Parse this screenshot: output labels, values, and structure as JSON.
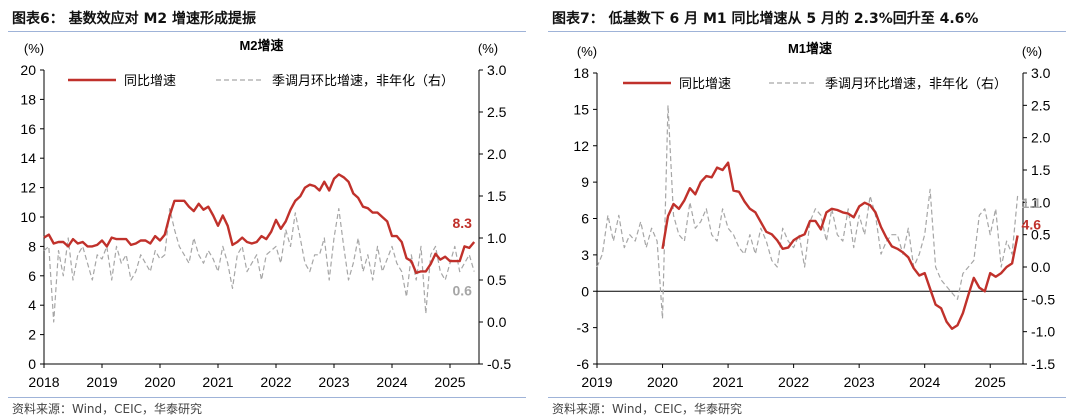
{
  "panels": [
    {
      "title": "图表6： 基数效应对 M2 增速形成提振",
      "source": "资料来源：Wind，CEIC，华泰研究"
    },
    {
      "title": "图表7： 低基数下 6 月 M1 同比增速从 5 月的 2.3%回升至 4.6%",
      "source": "资料来源：Wind，CEIC，华泰研究"
    }
  ],
  "colors": {
    "primary": "#c0312b",
    "secondary": "#a6a6a6",
    "header_rule": "#9fb3d8"
  },
  "chart_data": [
    {
      "type": "line",
      "title": "M2增速",
      "left_unit": "(%)",
      "right_unit": "(%)",
      "x_ticks": [
        "2018",
        "2019",
        "2020",
        "2021",
        "2022",
        "2023",
        "2024",
        "2025"
      ],
      "x_range": [
        2018.0,
        2025.5
      ],
      "ylim_left": [
        0,
        20
      ],
      "yticks_left": [
        "0",
        "2",
        "4",
        "6",
        "8",
        "10",
        "12",
        "14",
        "16",
        "18",
        "20"
      ],
      "ylim_right": [
        -0.5,
        3.0
      ],
      "yticks_right": [
        "-0.5",
        "0.0",
        "0.5",
        "1.0",
        "1.5",
        "2.0",
        "2.5",
        "3.0"
      ],
      "series": [
        {
          "name": "同比增速",
          "axis": "left",
          "style": "solid",
          "end_label": "8.3",
          "x": [
            2018.0,
            2018.083,
            2018.167,
            2018.25,
            2018.333,
            2018.417,
            2018.5,
            2018.583,
            2018.667,
            2018.75,
            2018.833,
            2018.917,
            2019.0,
            2019.083,
            2019.167,
            2019.25,
            2019.333,
            2019.417,
            2019.5,
            2019.583,
            2019.667,
            2019.75,
            2019.833,
            2019.917,
            2020.0,
            2020.083,
            2020.167,
            2020.25,
            2020.333,
            2020.417,
            2020.5,
            2020.583,
            2020.667,
            2020.75,
            2020.833,
            2020.917,
            2021.0,
            2021.083,
            2021.167,
            2021.25,
            2021.333,
            2021.417,
            2021.5,
            2021.583,
            2021.667,
            2021.75,
            2021.833,
            2021.917,
            2022.0,
            2022.083,
            2022.167,
            2022.25,
            2022.333,
            2022.417,
            2022.5,
            2022.583,
            2022.667,
            2022.75,
            2022.833,
            2022.917,
            2023.0,
            2023.083,
            2023.167,
            2023.25,
            2023.333,
            2023.417,
            2023.5,
            2023.583,
            2023.667,
            2023.75,
            2023.833,
            2023.917,
            2024.0,
            2024.083,
            2024.167,
            2024.25,
            2024.333,
            2024.417,
            2024.5,
            2024.583,
            2024.667,
            2024.75,
            2024.833,
            2024.917,
            2025.0,
            2025.083,
            2025.167,
            2025.25,
            2025.333,
            2025.417
          ],
          "values": [
            8.6,
            8.8,
            8.2,
            8.3,
            8.3,
            8.0,
            8.5,
            8.2,
            8.3,
            8.0,
            8.0,
            8.1,
            8.4,
            8.0,
            8.6,
            8.5,
            8.5,
            8.5,
            8.1,
            8.2,
            8.4,
            8.4,
            8.2,
            8.7,
            8.4,
            8.8,
            10.1,
            11.1,
            11.1,
            11.1,
            10.7,
            10.4,
            10.9,
            10.5,
            10.7,
            10.1,
            9.4,
            10.1,
            9.4,
            8.1,
            8.3,
            8.6,
            8.3,
            8.2,
            8.3,
            8.7,
            8.5,
            9.0,
            9.8,
            9.2,
            9.7,
            10.5,
            11.1,
            11.4,
            12.0,
            12.2,
            12.1,
            11.8,
            12.4,
            11.8,
            12.6,
            12.9,
            12.7,
            12.4,
            11.6,
            11.3,
            10.7,
            10.6,
            10.3,
            10.3,
            10.0,
            9.7,
            8.7,
            8.7,
            8.3,
            7.2,
            7.0,
            6.2,
            6.3,
            6.3,
            6.8,
            7.5,
            7.1,
            7.3,
            7.0,
            7.0,
            7.0,
            8.0,
            7.9,
            8.3
          ]
        },
        {
          "name": "季调月环比增速，非年化（右）",
          "axis": "right",
          "style": "dashed",
          "end_label": "0.6",
          "x": [
            2018.0,
            2018.083,
            2018.167,
            2018.25,
            2018.333,
            2018.417,
            2018.5,
            2018.583,
            2018.667,
            2018.75,
            2018.833,
            2018.917,
            2019.0,
            2019.083,
            2019.167,
            2019.25,
            2019.333,
            2019.417,
            2019.5,
            2019.583,
            2019.667,
            2019.75,
            2019.833,
            2019.917,
            2020.0,
            2020.083,
            2020.167,
            2020.25,
            2020.333,
            2020.417,
            2020.5,
            2020.583,
            2020.667,
            2020.75,
            2020.833,
            2020.917,
            2021.0,
            2021.083,
            2021.167,
            2021.25,
            2021.333,
            2021.417,
            2021.5,
            2021.583,
            2021.667,
            2021.75,
            2021.833,
            2021.917,
            2022.0,
            2022.083,
            2022.167,
            2022.25,
            2022.333,
            2022.417,
            2022.5,
            2022.583,
            2022.667,
            2022.75,
            2022.833,
            2022.917,
            2023.0,
            2023.083,
            2023.167,
            2023.25,
            2023.333,
            2023.417,
            2023.5,
            2023.583,
            2023.667,
            2023.75,
            2023.833,
            2023.917,
            2024.0,
            2024.083,
            2024.167,
            2024.25,
            2024.333,
            2024.417,
            2024.5,
            2024.583,
            2024.667,
            2024.75,
            2024.833,
            2024.917,
            2025.0,
            2025.083,
            2025.167,
            2025.25,
            2025.333,
            2025.417
          ],
          "values": [
            0.85,
            0.9,
            0.0,
            0.85,
            0.55,
            1.0,
            0.5,
            0.8,
            0.9,
            0.7,
            0.5,
            0.8,
            0.75,
            0.9,
            0.5,
            0.9,
            0.7,
            0.8,
            0.5,
            0.6,
            0.8,
            0.7,
            0.6,
            0.85,
            0.75,
            0.8,
            1.35,
            1.1,
            0.9,
            0.8,
            0.7,
            1.0,
            0.8,
            0.7,
            0.85,
            0.75,
            0.6,
            0.9,
            0.7,
            0.4,
            0.8,
            0.9,
            0.6,
            0.7,
            0.8,
            0.5,
            0.8,
            0.85,
            0.9,
            0.7,
            1.1,
            0.9,
            1.3,
            1.0,
            0.7,
            0.6,
            0.8,
            0.8,
            1.0,
            0.5,
            1.0,
            1.35,
            0.9,
            0.5,
            0.7,
            1.0,
            0.6,
            0.8,
            0.5,
            0.9,
            0.6,
            0.75,
            0.9,
            0.7,
            0.6,
            0.3,
            0.8,
            0.5,
            0.9,
            0.1,
            0.8,
            0.9,
            0.6,
            0.5,
            0.7,
            0.9,
            0.6,
            0.7,
            0.8,
            0.6
          ]
        }
      ]
    },
    {
      "type": "line",
      "title": "M1增速",
      "left_unit": "(%)",
      "right_unit": "(%)",
      "x_ticks": [
        "2019",
        "2020",
        "2021",
        "2022",
        "2023",
        "2024",
        "2025"
      ],
      "x_range": [
        2019.0,
        2025.5
      ],
      "ylim_left": [
        -6,
        18
      ],
      "yticks_left": [
        "-6",
        "-3",
        "0",
        "3",
        "6",
        "9",
        "12",
        "15",
        "18"
      ],
      "ylim_right": [
        -1.5,
        3.0
      ],
      "yticks_right": [
        "-1.5",
        "-1.0",
        "-0.5",
        "0.0",
        "0.5",
        "1.0",
        "1.5",
        "2.0",
        "2.5",
        "3.0"
      ],
      "series": [
        {
          "name": "同比增速",
          "axis": "left",
          "style": "solid",
          "end_label": "4.6",
          "x": [
            2020.0,
            2020.083,
            2020.167,
            2020.25,
            2020.333,
            2020.417,
            2020.5,
            2020.583,
            2020.667,
            2020.75,
            2020.833,
            2020.917,
            2021.0,
            2021.083,
            2021.167,
            2021.25,
            2021.333,
            2021.417,
            2021.5,
            2021.583,
            2021.667,
            2021.75,
            2021.833,
            2021.917,
            2022.0,
            2022.083,
            2022.167,
            2022.25,
            2022.333,
            2022.417,
            2022.5,
            2022.583,
            2022.667,
            2022.75,
            2022.833,
            2022.917,
            2023.0,
            2023.083,
            2023.167,
            2023.25,
            2023.333,
            2023.417,
            2023.5,
            2023.583,
            2023.667,
            2023.75,
            2023.833,
            2023.917,
            2024.0,
            2024.083,
            2024.167,
            2024.25,
            2024.333,
            2024.417,
            2024.5,
            2024.583,
            2024.667,
            2024.75,
            2024.833,
            2024.917,
            2025.0,
            2025.083,
            2025.167,
            2025.25,
            2025.333,
            2025.417
          ],
          "values": [
            3.5,
            6.2,
            7.2,
            6.8,
            7.5,
            8.5,
            8.0,
            9.0,
            9.5,
            9.4,
            10.2,
            10.0,
            10.6,
            8.3,
            8.2,
            7.4,
            6.8,
            6.5,
            5.7,
            4.9,
            4.7,
            4.2,
            3.5,
            3.6,
            4.2,
            4.5,
            4.7,
            5.8,
            5.8,
            5.1,
            6.5,
            6.8,
            6.7,
            6.5,
            6.4,
            6.1,
            7.0,
            7.3,
            7.1,
            6.5,
            5.3,
            4.4,
            3.7,
            3.5,
            3.2,
            2.8,
            1.9,
            1.3,
            1.5,
            0.2,
            -1.1,
            -1.4,
            -2.5,
            -3.1,
            -2.8,
            -1.8,
            -0.3,
            1.1,
            0.3,
            0.0,
            1.5,
            1.2,
            1.5,
            2.0,
            2.3,
            4.6
          ]
        },
        {
          "name": "季调月环比增速，非年化（右）",
          "axis": "right",
          "style": "dashed",
          "end_label": "1.1",
          "x": [
            2019.0,
            2019.083,
            2019.167,
            2019.25,
            2019.333,
            2019.417,
            2019.5,
            2019.583,
            2019.667,
            2019.75,
            2019.833,
            2019.917,
            2020.0,
            2020.083,
            2020.167,
            2020.25,
            2020.333,
            2020.417,
            2020.5,
            2020.583,
            2020.667,
            2020.75,
            2020.833,
            2020.917,
            2021.0,
            2021.083,
            2021.167,
            2021.25,
            2021.333,
            2021.417,
            2021.5,
            2021.583,
            2021.667,
            2021.75,
            2021.833,
            2021.917,
            2022.0,
            2022.083,
            2022.167,
            2022.25,
            2022.333,
            2022.417,
            2022.5,
            2022.583,
            2022.667,
            2022.75,
            2022.833,
            2022.917,
            2023.0,
            2023.083,
            2023.167,
            2023.25,
            2023.333,
            2023.417,
            2023.5,
            2023.583,
            2023.667,
            2023.75,
            2023.833,
            2023.917,
            2024.0,
            2024.083,
            2024.167,
            2024.25,
            2024.333,
            2024.417,
            2024.5,
            2024.583,
            2024.667,
            2024.75,
            2024.833,
            2024.917,
            2025.0,
            2025.083,
            2025.167,
            2025.25,
            2025.333,
            2025.417
          ],
          "values": [
            0.0,
            0.2,
            0.8,
            0.4,
            0.8,
            0.3,
            0.5,
            0.4,
            0.7,
            0.3,
            0.6,
            0.4,
            -0.8,
            2.5,
            0.8,
            0.5,
            0.4,
            1.0,
            0.6,
            0.7,
            0.9,
            0.5,
            0.4,
            0.9,
            0.6,
            0.5,
            0.3,
            0.2,
            0.5,
            0.2,
            0.6,
            0.4,
            0.1,
            0.0,
            0.6,
            0.4,
            0.3,
            0.5,
            0.0,
            0.7,
            0.9,
            0.8,
            0.4,
            0.9,
            0.5,
            0.4,
            0.9,
            0.3,
            0.8,
            0.5,
            1.1,
            0.8,
            0.2,
            0.4,
            0.5,
            0.5,
            0.2,
            0.6,
            0.0,
            0.2,
            0.5,
            1.2,
            0.0,
            -0.2,
            -0.3,
            -0.4,
            -0.5,
            -0.1,
            0.0,
            0.1,
            0.8,
            0.9,
            0.5,
            0.9,
            0.0,
            0.4,
            0.2,
            1.1
          ]
        }
      ]
    }
  ]
}
